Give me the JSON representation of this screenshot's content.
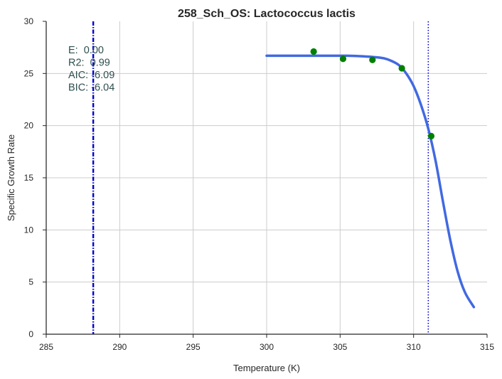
{
  "chart_data": {
    "type": "line",
    "title": "258_Sch_OS: Lactococcus lactis",
    "xlabel": "Temperature (K)",
    "ylabel": "Specific Growth Rate",
    "xlim": [
      285,
      315
    ],
    "ylim": [
      0,
      30
    ],
    "xticks": [
      "285",
      "290",
      "295",
      "300",
      "305",
      "310",
      "315"
    ],
    "yticks": [
      "0",
      "5",
      "10",
      "15",
      "20",
      "25",
      "30"
    ],
    "grid": true,
    "series": [
      {
        "kind": "line",
        "color": "#4169e1",
        "x": [
          300.0,
          302.0,
          304.0,
          305.5,
          306.5,
          307.5,
          308.0,
          308.5,
          309.0,
          309.5,
          310.0,
          310.5,
          311.0,
          311.5,
          312.0,
          312.5,
          313.0,
          313.5,
          314.1
        ],
        "y": [
          26.7,
          26.7,
          26.7,
          26.7,
          26.65,
          26.55,
          26.45,
          26.2,
          25.8,
          25.0,
          23.8,
          22.0,
          19.7,
          16.6,
          12.7,
          9.0,
          6.0,
          4.0,
          2.6
        ]
      },
      {
        "kind": "scatter",
        "color": "#008000",
        "x": [
          303.2,
          305.2,
          307.2,
          309.2,
          311.2
        ],
        "y": [
          27.1,
          26.4,
          26.3,
          25.5,
          19.0
        ]
      }
    ],
    "vlines": [
      {
        "x": 288.2,
        "style": "dashdot",
        "color": "#0000cc"
      },
      {
        "x": 311.0,
        "style": "dotted",
        "color": "#0000cc"
      }
    ],
    "annotation": {
      "lines": [
        "E:  0.00",
        "R2:  0.99",
        "AIC: -6.09",
        "BIC: -6.04"
      ],
      "color": "#2f4f4f"
    }
  }
}
